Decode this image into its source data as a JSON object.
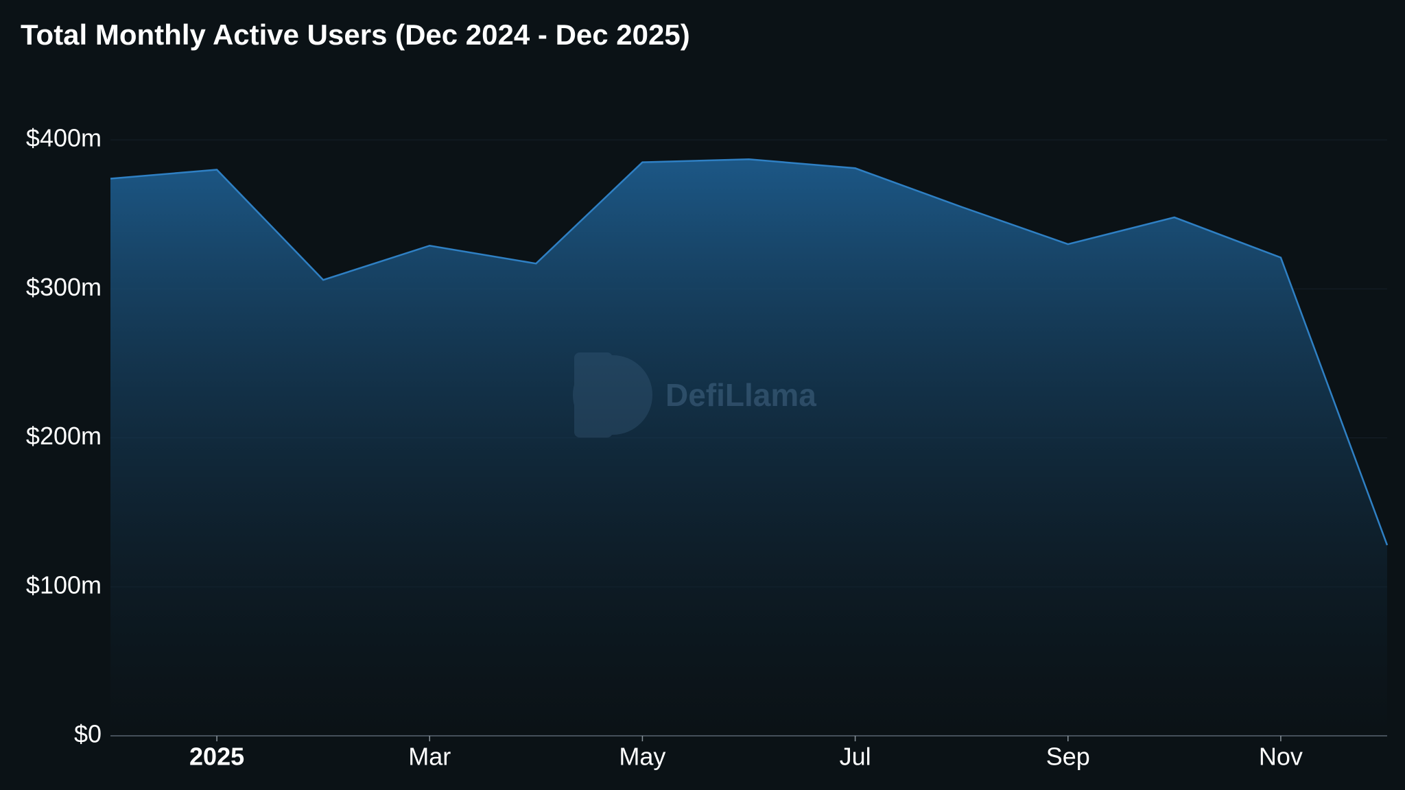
{
  "chart_data": {
    "type": "area",
    "title": "Total Monthly Active Users (Dec 2024 - Dec 2025)",
    "watermark": "DefiLlama",
    "categories": [
      null,
      "2025",
      null,
      "Mar",
      null,
      "May",
      null,
      "Jul",
      null,
      "Sep",
      null,
      "Nov",
      null
    ],
    "values": [
      374000000,
      380000000,
      306000000,
      329000000,
      317000000,
      385000000,
      387000000,
      381000000,
      355000000,
      330000000,
      348000000,
      321000000,
      128000000
    ],
    "color": "#2f80c4",
    "ylim": [
      0,
      400000000
    ],
    "yticks": [
      {
        "value": 0,
        "label": "$0"
      },
      {
        "value": 100000000,
        "label": "$100m"
      },
      {
        "value": 200000000,
        "label": "$200m"
      },
      {
        "value": 300000000,
        "label": "$300m"
      },
      {
        "value": 400000000,
        "label": "$400m"
      }
    ],
    "grid": true
  }
}
